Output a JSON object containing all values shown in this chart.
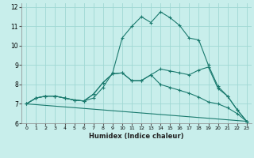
{
  "xlabel": "Humidex (Indice chaleur)",
  "ylabel": "",
  "xlim": [
    -0.5,
    23.5
  ],
  "ylim": [
    6,
    12.2
  ],
  "yticks": [
    6,
    7,
    8,
    9,
    10,
    11,
    12
  ],
  "xticks": [
    0,
    1,
    2,
    3,
    4,
    5,
    6,
    7,
    8,
    9,
    10,
    11,
    12,
    13,
    14,
    15,
    16,
    17,
    18,
    19,
    20,
    21,
    22,
    23
  ],
  "bg_color": "#c8eeeb",
  "grid_color": "#a0d8d4",
  "line_color": "#1a7a6e",
  "lines": [
    {
      "x": [
        0,
        1,
        2,
        3,
        4,
        5,
        6,
        7,
        8,
        9,
        10,
        11,
        12,
        13,
        14,
        15,
        16,
        17,
        18,
        19,
        20,
        21,
        22,
        23
      ],
      "y": [
        7.0,
        7.3,
        7.4,
        7.4,
        7.3,
        7.2,
        7.15,
        7.3,
        7.85,
        8.6,
        10.4,
        11.0,
        11.5,
        11.2,
        11.75,
        11.45,
        11.05,
        10.4,
        10.3,
        9.0,
        7.9,
        7.4,
        6.7,
        6.1
      ]
    },
    {
      "x": [
        0,
        1,
        2,
        3,
        4,
        5,
        6,
        7,
        8,
        9,
        10,
        11,
        12,
        13,
        14,
        15,
        16,
        17,
        18,
        19,
        20,
        21,
        22,
        23
      ],
      "y": [
        7.0,
        7.3,
        7.4,
        7.4,
        7.3,
        7.2,
        7.15,
        7.5,
        8.1,
        8.55,
        8.6,
        8.2,
        8.2,
        8.5,
        8.8,
        8.7,
        8.6,
        8.5,
        8.75,
        8.9,
        7.8,
        7.4,
        6.7,
        6.1
      ]
    },
    {
      "x": [
        0,
        1,
        2,
        3,
        4,
        5,
        6,
        7,
        8,
        9,
        10,
        11,
        12,
        13,
        14,
        15,
        16,
        17,
        18,
        19,
        20,
        21,
        22,
        23
      ],
      "y": [
        7.0,
        7.3,
        7.4,
        7.4,
        7.3,
        7.2,
        7.15,
        7.5,
        8.1,
        8.55,
        8.6,
        8.2,
        8.2,
        8.5,
        8.0,
        7.85,
        7.7,
        7.55,
        7.35,
        7.1,
        7.0,
        6.8,
        6.5,
        6.1
      ]
    },
    {
      "x": [
        0,
        23
      ],
      "y": [
        7.0,
        6.1
      ]
    }
  ]
}
